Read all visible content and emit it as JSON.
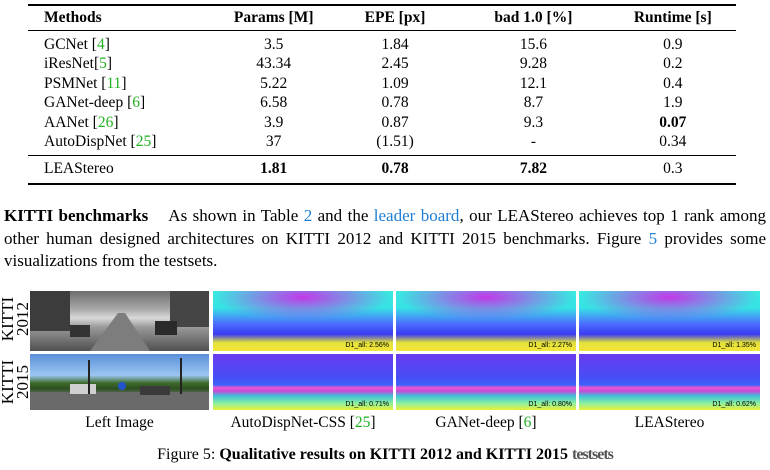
{
  "table": {
    "headers": [
      "Methods",
      "Params [M]",
      "EPE [px]",
      "bad 1.0 [%]",
      "Runtime [s]"
    ],
    "rows": [
      {
        "method": "GCNet",
        "ref": "4",
        "params": "3.5",
        "epe": "1.84",
        "bad": "15.6",
        "runtime": "0.9"
      },
      {
        "method": "iResNet",
        "ref": "5",
        "params": "43.34",
        "epe": "2.45",
        "bad": "9.28",
        "runtime": "0.2"
      },
      {
        "method": "PSMNet",
        "ref": "11",
        "params": "5.22",
        "epe": "1.09",
        "bad": "12.1",
        "runtime": "0.4"
      },
      {
        "method": "GANet-deep",
        "ref": "6",
        "params": "6.58",
        "epe": "0.78",
        "bad": "8.7",
        "runtime": "1.9"
      },
      {
        "method": "AANet",
        "ref": "26",
        "params": "3.9",
        "epe": "0.87",
        "bad": "9.3",
        "runtime": "0.07"
      },
      {
        "method": "AutoDispNet",
        "ref": "25",
        "params": "37",
        "epe": "(1.51)",
        "bad": "-",
        "runtime": "0.34"
      }
    ],
    "best": {
      "method": "LEAStereo",
      "params": "1.81",
      "epe": "0.78",
      "bad": "7.82",
      "runtime": "0.3"
    }
  },
  "paragraph": {
    "heading": "KITTI benchmarks",
    "t1": "As shown in Table ",
    "table_ref": "2",
    "t2": " and the ",
    "link": "leader board",
    "t3": ", our LEAStereo achieves top 1 rank among other human designed architectures on KITTI 2012 and KITTI 2015 benchmarks. Figure ",
    "fig_ref": "5",
    "t4": " provides some visualizations from the testsets."
  },
  "figure": {
    "row_labels": [
      "KITTI 2012",
      "KITTI 2015"
    ],
    "row1_scores": [
      "D1_all: 2.56%",
      "D1_all: 2.27%",
      "D1_all: 1.35%"
    ],
    "row2_scores": [
      "D1_all: 0.71%",
      "D1_all: 0.80%",
      "D1_all: 0.62%"
    ],
    "columns": [
      {
        "label": "Left Image",
        "ref": ""
      },
      {
        "label": "AutoDispNet-CSS ",
        "ref": "25"
      },
      {
        "label": "GANet-deep ",
        "ref": "6"
      },
      {
        "label": "LEAStereo",
        "ref": ""
      }
    ],
    "caption_no": "Figure 5:",
    "caption_text": "Qualitative results on KITTI 2012 and KITTI 2015",
    "caption_cut": "testsets"
  }
}
